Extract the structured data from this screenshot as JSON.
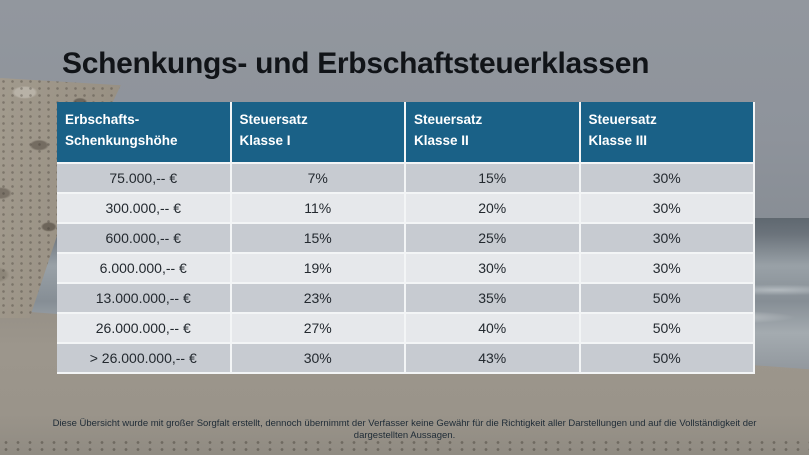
{
  "slide": {
    "title": "Schenkungs- und Erbschaftsteuerklassen",
    "disclaimer": "Diese Übersicht wurde mit großer Sorgfalt erstellt, dennoch übernimmt der Verfasser keine Gewähr für die Richtigkeit aller Darstellungen und auf die Vollständigkeit der dargestellten Aussagen."
  },
  "table": {
    "headers": [
      {
        "line1": "Erbschafts-",
        "line2": "Schenkungshöhe"
      },
      {
        "line1": "Steuersatz",
        "line2": "Klasse I"
      },
      {
        "line1": "Steuersatz",
        "line2": "Klasse II"
      },
      {
        "line1": "Steuersatz",
        "line2": "Klasse III"
      }
    ],
    "rows": [
      {
        "amount": "75.000,-- €",
        "class1": "7%",
        "class2": "15%",
        "class3": "30%"
      },
      {
        "amount": "300.000,-- €",
        "class1": "11%",
        "class2": "20%",
        "class3": "30%"
      },
      {
        "amount": "600.000,-- €",
        "class1": "15%",
        "class2": "25%",
        "class3": "30%"
      },
      {
        "amount": "6.000.000,-- €",
        "class1": "19%",
        "class2": "30%",
        "class3": "30%"
      },
      {
        "amount": "13.000.000,-- €",
        "class1": "23%",
        "class2": "35%",
        "class3": "50%"
      },
      {
        "amount": "26.000.000,-- €",
        "class1": "27%",
        "class2": "40%",
        "class3": "50%"
      },
      {
        "amount": "> 26.000.000,-- €",
        "class1": "30%",
        "class2": "43%",
        "class3": "50%"
      }
    ]
  },
  "colors": {
    "header_bg": "#1a6187",
    "header_text": "#ffffff",
    "row_dark": "#c7cbd1",
    "row_light": "#e6e8eb",
    "body_text": "#23292f",
    "title_text": "#111418",
    "disclaimer_text": "#1e2b36"
  }
}
